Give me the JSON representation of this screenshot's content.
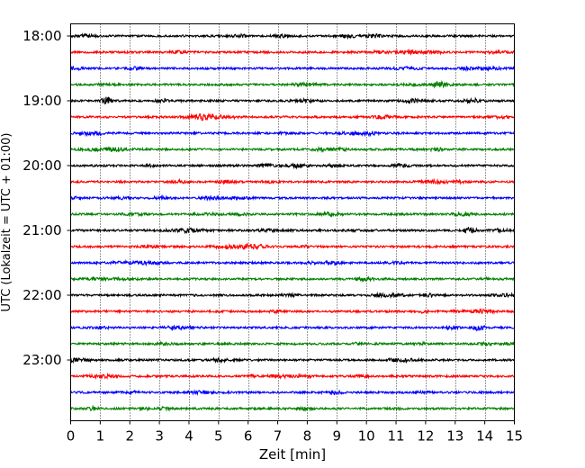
{
  "chart_data": {
    "type": "line",
    "title": "",
    "xlabel": "Zeit  [min]",
    "ylabel": "UTC (Lokalzeit = UTC + 01:00)",
    "xlim": [
      0,
      15
    ],
    "x_ticks": [
      0,
      1,
      2,
      3,
      4,
      5,
      6,
      7,
      8,
      9,
      10,
      11,
      12,
      13,
      14,
      15
    ],
    "x_tick_labels": [
      "0",
      "1",
      "2",
      "3",
      "4",
      "5",
      "6",
      "7",
      "8",
      "9",
      "10",
      "11",
      "12",
      "13",
      "14",
      "15"
    ],
    "y_ticks": [
      "18:00",
      "19:00",
      "20:00",
      "21:00",
      "22:00",
      "23:00"
    ],
    "ylim_rows": [
      -0.75,
      23.35
    ],
    "grid": "vertical dotted lines at each minute",
    "legend": "none",
    "colors": [
      "#000000",
      "#ff0000",
      "#0000ff",
      "#008000"
    ],
    "series": [
      {
        "start": "18:00",
        "color": "#000000"
      },
      {
        "start": "18:15",
        "color": "#ff0000"
      },
      {
        "start": "18:30",
        "color": "#0000ff"
      },
      {
        "start": "18:45",
        "color": "#008000"
      },
      {
        "start": "19:00",
        "color": "#000000",
        "bursts": [
          {
            "t": 1.2,
            "amp": 3.0
          }
        ]
      },
      {
        "start": "19:15",
        "color": "#ff0000"
      },
      {
        "start": "19:30",
        "color": "#0000ff"
      },
      {
        "start": "19:45",
        "color": "#008000"
      },
      {
        "start": "20:00",
        "color": "#000000"
      },
      {
        "start": "20:15",
        "color": "#ff0000"
      },
      {
        "start": "20:30",
        "color": "#0000ff"
      },
      {
        "start": "20:45",
        "color": "#008000"
      },
      {
        "start": "21:00",
        "color": "#000000",
        "bursts": [
          {
            "t": 13.5,
            "amp": 3.0
          }
        ]
      },
      {
        "start": "21:15",
        "color": "#ff0000"
      },
      {
        "start": "21:30",
        "color": "#0000ff"
      },
      {
        "start": "21:45",
        "color": "#008000"
      },
      {
        "start": "22:00",
        "color": "#000000"
      },
      {
        "start": "22:15",
        "color": "#ff0000"
      },
      {
        "start": "22:30",
        "color": "#0000ff",
        "bursts": [
          {
            "t": 13.8,
            "amp": 2.8
          }
        ]
      },
      {
        "start": "22:45",
        "color": "#008000"
      },
      {
        "start": "23:00",
        "color": "#000000"
      },
      {
        "start": "23:15",
        "color": "#ff0000"
      },
      {
        "start": "23:30",
        "color": "#0000ff"
      },
      {
        "start": "23:45",
        "color": "#008000"
      }
    ]
  }
}
